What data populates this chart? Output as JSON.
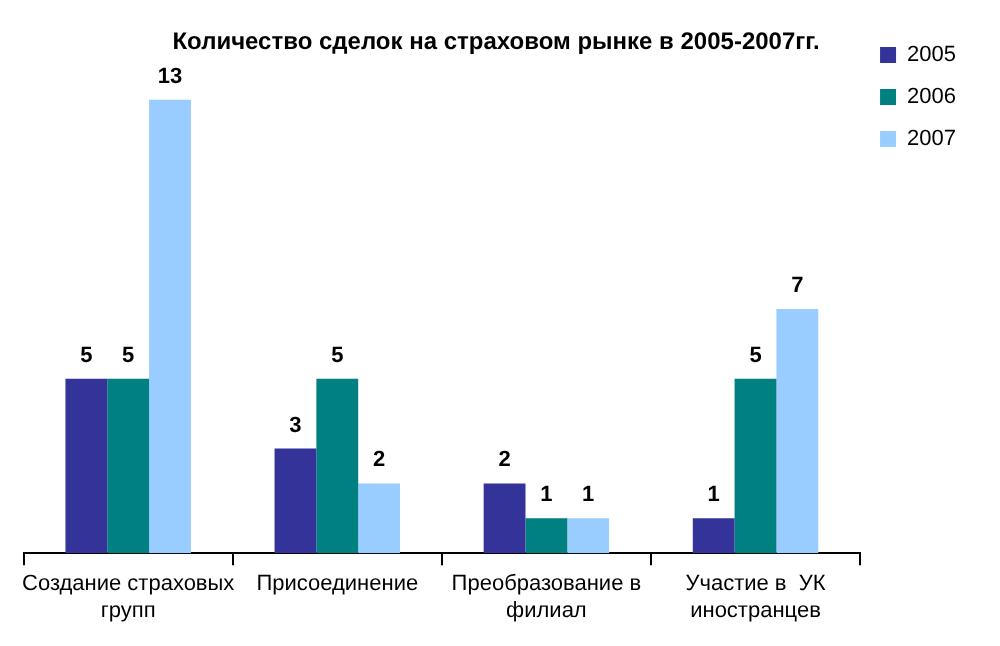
{
  "chart_data": {
    "type": "bar",
    "title": "Количество сделок на страховом рынке в 2005-2007гг.",
    "categories": [
      "Создание страховых групп",
      "Присоединение",
      "Преобразование в филиал",
      "Участие в  УК иностранцев"
    ],
    "series": [
      {
        "name": "2005",
        "color": "#333399",
        "values": [
          5,
          3,
          2,
          1
        ]
      },
      {
        "name": "2006",
        "color": "#008080",
        "values": [
          5,
          5,
          1,
          5
        ]
      },
      {
        "name": "2007",
        "color": "#99ccff",
        "values": [
          13,
          2,
          1,
          7
        ]
      }
    ],
    "data_labels": true,
    "legend": "top right",
    "grid": false
  }
}
